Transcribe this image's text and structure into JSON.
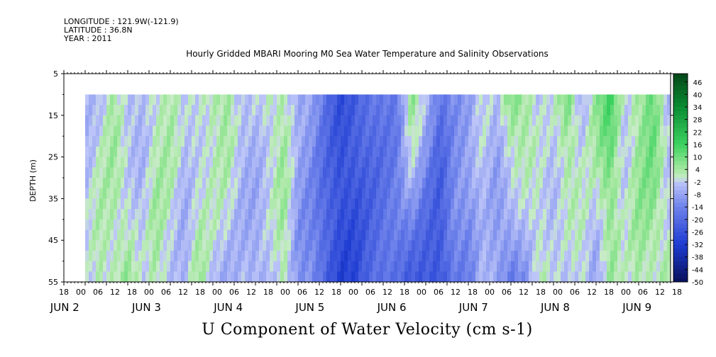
{
  "header": {
    "longitude": "LONGITUDE : 121.9W(-121.9)",
    "latitude": "LATITUDE : 36.8N",
    "year": "YEAR : 2011"
  },
  "chart_data": {
    "type": "heatmap",
    "title": "Hourly Gridded MBARI Mooring M0 Sea Water Temperature and Salinity Observations",
    "xlabel": "U Component of Water Velocity (cm s-1)",
    "ylabel": "DEPTH (m)",
    "x_range_hours": [
      0,
      171
    ],
    "data_start_hour": 6,
    "y_range": [
      5,
      55
    ],
    "y_reversed": true,
    "data_depth_range": [
      10,
      55
    ],
    "y_ticks": [
      5,
      15,
      25,
      35,
      45,
      55
    ],
    "x_hour_ticks": [
      "18",
      "00",
      "06",
      "12",
      "18",
      "00",
      "06",
      "12",
      "18",
      "00",
      "06",
      "12",
      "18",
      "00",
      "06",
      "12",
      "18",
      "00",
      "06",
      "12",
      "18",
      "00",
      "06",
      "12",
      "18",
      "00",
      "06",
      "12",
      "18",
      "00",
      "06",
      "12",
      "18",
      "00",
      "06",
      "12",
      "18"
    ],
    "x_day_labels": [
      {
        "hour": 6,
        "text": "JUN  2"
      },
      {
        "hour": 30,
        "text": "JUN  3"
      },
      {
        "hour": 54,
        "text": "JUN  4"
      },
      {
        "hour": 78,
        "text": "JUN  5"
      },
      {
        "hour": 102,
        "text": "JUN  6"
      },
      {
        "hour": 126,
        "text": "JUN  7"
      },
      {
        "hour": 150,
        "text": "JUN  8"
      },
      {
        "hour": 174,
        "text": "JUN  9"
      }
    ],
    "colorbar_labels": [
      46,
      40,
      34,
      28,
      22,
      16,
      10,
      4,
      -2,
      -8,
      -14,
      -20,
      -26,
      -32,
      -38,
      -44,
      -50
    ],
    "colorbar_range": [
      -50,
      50
    ],
    "colors": {
      "strong_negative": "#0a1a6e",
      "negative": "#2f4fd6",
      "weak_negative": "#a9b4f0",
      "weak_positive": "#a6e8a0",
      "positive": "#3cd65a",
      "strong_positive": "#0b5c1e"
    },
    "column_profiles": {
      "note_hours": [
        6,
        10,
        14,
        18,
        22,
        26,
        30,
        34,
        38,
        42,
        46,
        50,
        54,
        58,
        62,
        66,
        70,
        74,
        78,
        82,
        86,
        90,
        94,
        98,
        102,
        106,
        110,
        114,
        118,
        122,
        126,
        130,
        134,
        138,
        142,
        146,
        150,
        154,
        158,
        162,
        166,
        170
      ],
      "surface_values": [
        -4,
        -2,
        4,
        -6,
        -4,
        2,
        4,
        -4,
        -2,
        4,
        6,
        -6,
        -4,
        2,
        4,
        -8,
        -10,
        -18,
        -26,
        -24,
        -20,
        -16,
        -14,
        8,
        -6,
        -18,
        -10,
        -8,
        -2,
        -6,
        10,
        6,
        -4,
        -2,
        10,
        -4,
        6,
        14,
        -2,
        6,
        12,
        -6
      ],
      "deep_values": [
        -4,
        4,
        2,
        6,
        -4,
        4,
        -2,
        -6,
        4,
        -4,
        -6,
        -4,
        -8,
        -6,
        4,
        -10,
        -14,
        -24,
        -30,
        -28,
        -22,
        -20,
        -18,
        -24,
        -26,
        -28,
        -16,
        -14,
        -4,
        -10,
        -18,
        -10,
        4,
        -4,
        -6,
        2,
        -8,
        4,
        -2,
        4,
        2,
        4
      ]
    }
  }
}
